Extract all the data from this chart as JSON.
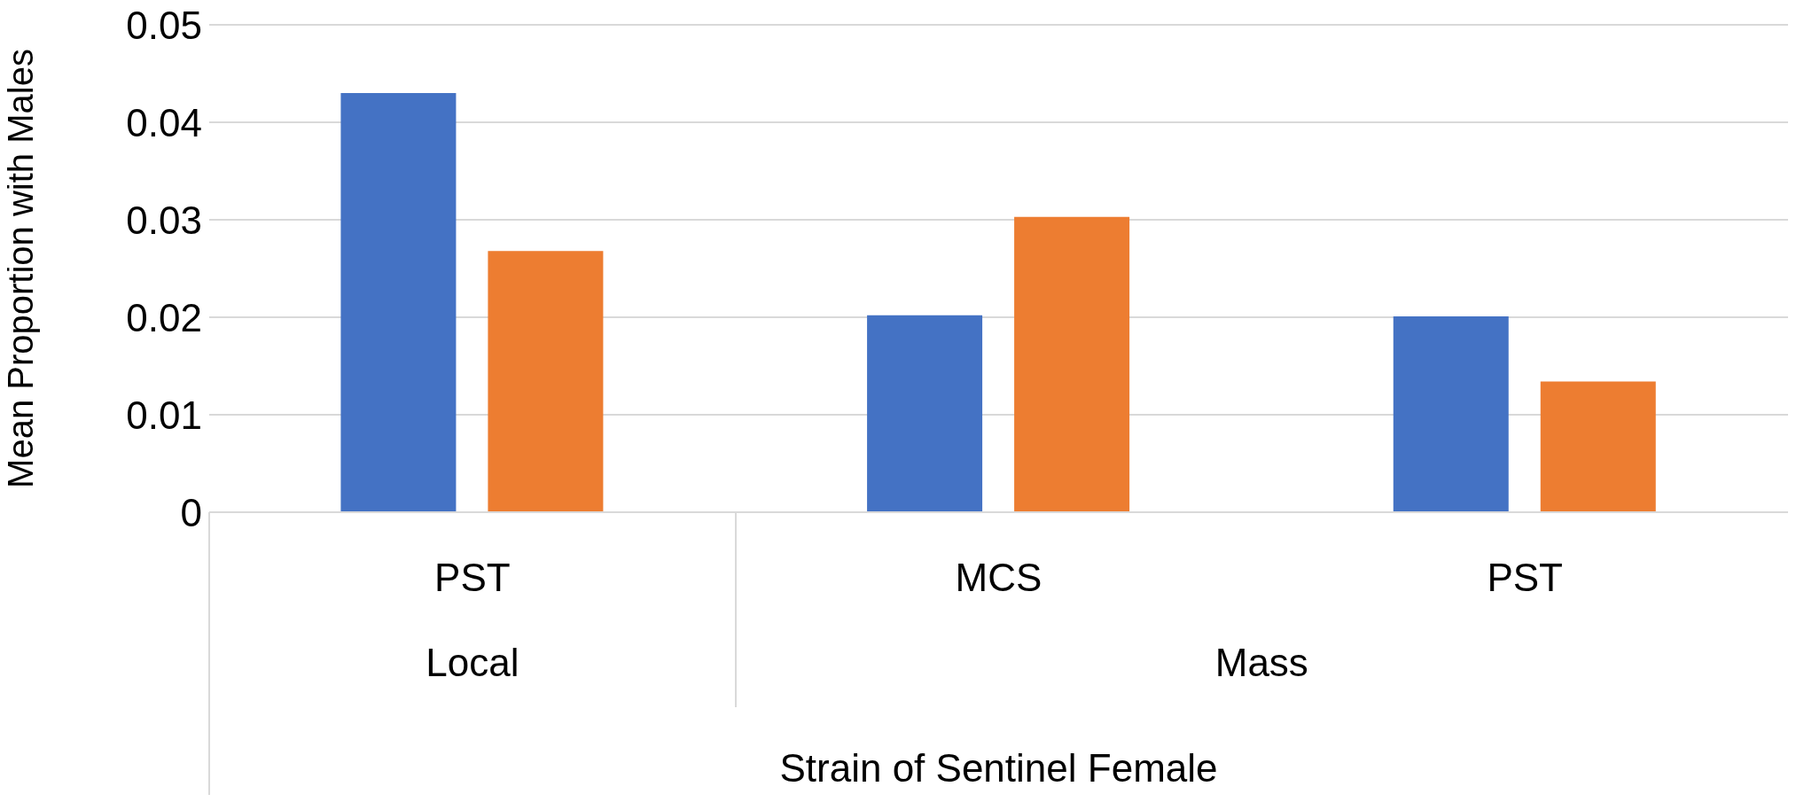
{
  "chart_data": {
    "type": "bar",
    "ylabel": "Mean Proportion with Males",
    "xlabel": "Strain of Sentinel Female",
    "categories": [
      "PST",
      "MCS",
      "PST"
    ],
    "series": [
      {
        "color": "#4472c4",
        "values": [
          0.043,
          0.0202,
          0.0201
        ]
      },
      {
        "color": "#ed7d31",
        "values": [
          0.0268,
          0.0303,
          0.0134
        ]
      }
    ],
    "annotations": [
      "Local",
      "Mass"
    ],
    "ylim": [
      0,
      0.05
    ],
    "yticks": [
      0,
      0.01,
      0.02,
      0.03,
      0.04,
      0.05
    ],
    "grid": "y",
    "legend": false
  }
}
